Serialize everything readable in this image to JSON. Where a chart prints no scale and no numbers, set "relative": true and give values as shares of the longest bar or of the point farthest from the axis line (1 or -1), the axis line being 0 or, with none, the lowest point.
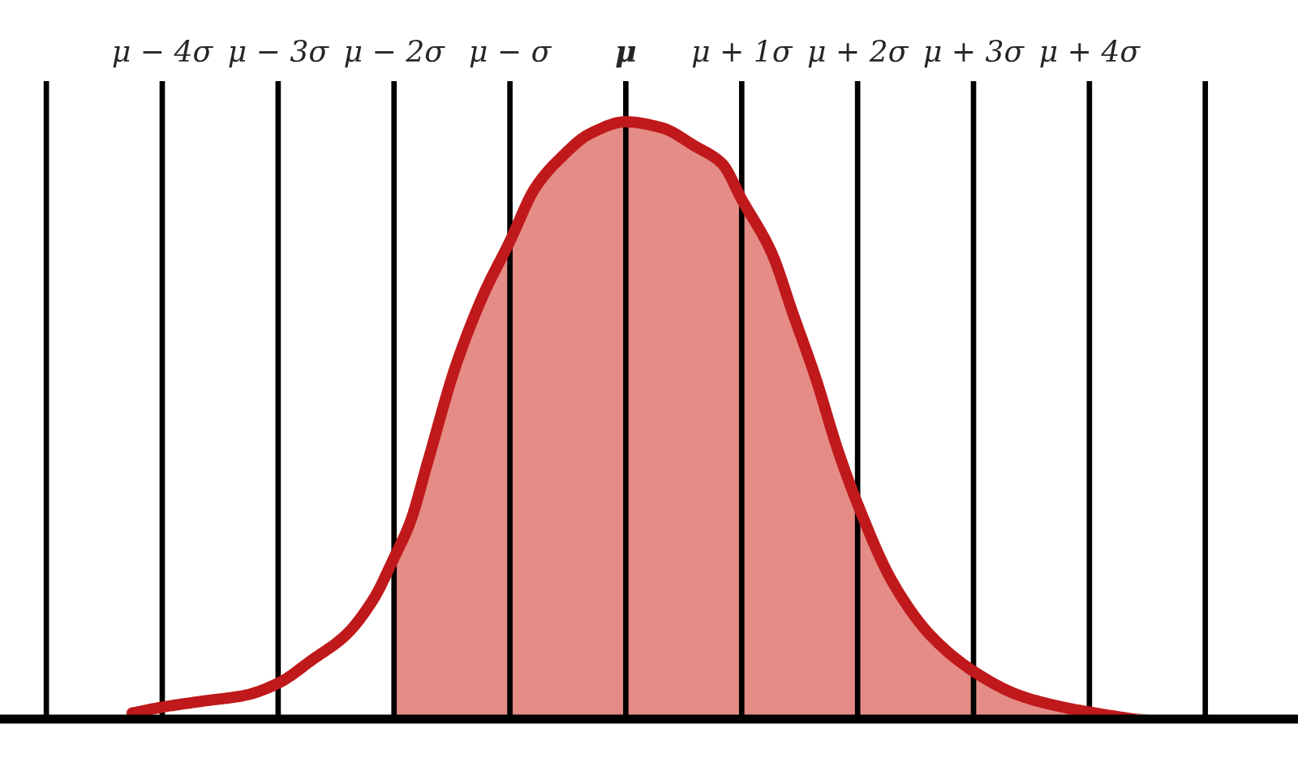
{
  "chart_data": {
    "type": "line",
    "relative": true,
    "xlim": [
      -5.4,
      5.8
    ],
    "xticks": [
      {
        "value": -5,
        "label": null
      },
      {
        "value": -4,
        "label": "μ − 4σ"
      },
      {
        "value": -3,
        "label": "μ − 3σ"
      },
      {
        "value": -2,
        "label": "μ − 2σ"
      },
      {
        "value": -1,
        "label": "μ − σ"
      },
      {
        "value": 0,
        "label": "μ"
      },
      {
        "value": 1,
        "label": "μ + 1σ"
      },
      {
        "value": 2,
        "label": "μ + 2σ"
      },
      {
        "value": 3,
        "label": "μ + 3σ"
      },
      {
        "value": 4,
        "label": "μ + 4σ"
      },
      {
        "value": 5,
        "label": null
      }
    ],
    "grid": "x",
    "series": [
      {
        "type": "area",
        "color": "#e58c87",
        "x": [
          -2.0,
          -1.86,
          -1.71,
          -1.47,
          -1.23,
          -1.0,
          -0.78,
          -0.56,
          -0.31,
          0.0,
          0.31,
          0.59,
          0.83,
          1.0,
          1.26,
          1.44,
          1.64,
          1.83,
          2.0,
          2.3,
          2.63,
          3.0,
          3.39,
          3.77,
          4.05,
          4.38,
          4.66
        ],
        "values": [
          0.27,
          0.33,
          0.43,
          0.59,
          0.71,
          0.8,
          0.89,
          0.94,
          0.98,
          1.0,
          0.99,
          0.96,
          0.93,
          0.87,
          0.78,
          0.68,
          0.57,
          0.45,
          0.36,
          0.23,
          0.14,
          0.08,
          0.04,
          0.02,
          0.01,
          0.01,
          0.0
        ]
      },
      {
        "color": "#c0191b",
        "x": [
          -4.26,
          -4.0,
          -3.65,
          -3.28,
          -3.0,
          -2.7,
          -2.42,
          -2.18,
          -2.0,
          -1.86,
          -1.71,
          -1.47,
          -1.23,
          -1.0,
          -0.78,
          -0.56,
          -0.31,
          0.0,
          0.31,
          0.59,
          0.83,
          1.0,
          1.26,
          1.44,
          1.64,
          1.83,
          2.0,
          2.3,
          2.63,
          3.0,
          3.39,
          3.77,
          4.05,
          4.38
        ],
        "values": [
          0.01,
          0.02,
          0.03,
          0.04,
          0.06,
          0.1,
          0.14,
          0.2,
          0.27,
          0.33,
          0.43,
          0.59,
          0.71,
          0.8,
          0.89,
          0.94,
          0.98,
          1.0,
          0.99,
          0.96,
          0.93,
          0.87,
          0.78,
          0.68,
          0.57,
          0.45,
          0.36,
          0.23,
          0.14,
          0.08,
          0.04,
          0.02,
          0.01,
          0.0
        ]
      }
    ]
  }
}
